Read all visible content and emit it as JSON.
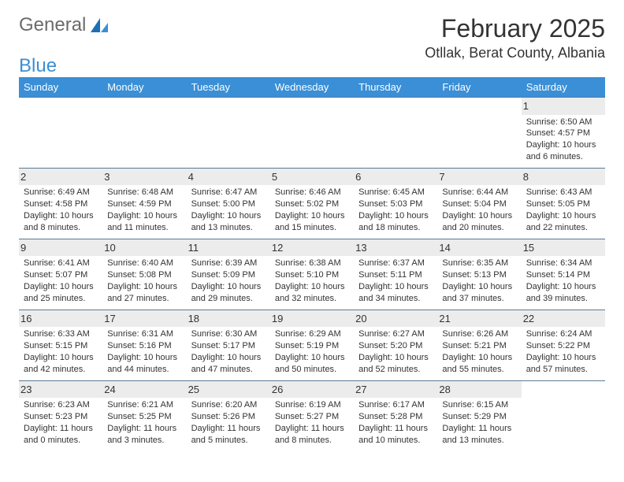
{
  "logo": {
    "part1": "General",
    "part2": "Blue"
  },
  "title": "February 2025",
  "location": "Otllak, Berat County, Albania",
  "colors": {
    "header_bg": "#3a8fd6",
    "header_text": "#ffffff",
    "daynum_bg": "#ececec",
    "row_border": "#5a7a95",
    "text": "#333333",
    "logo_gray": "#6b6b6b",
    "logo_blue": "#3a8fd6"
  },
  "day_headers": [
    "Sunday",
    "Monday",
    "Tuesday",
    "Wednesday",
    "Thursday",
    "Friday",
    "Saturday"
  ],
  "weeks": [
    [
      {
        "n": "",
        "sr": "",
        "ss": "",
        "dl": ""
      },
      {
        "n": "",
        "sr": "",
        "ss": "",
        "dl": ""
      },
      {
        "n": "",
        "sr": "",
        "ss": "",
        "dl": ""
      },
      {
        "n": "",
        "sr": "",
        "ss": "",
        "dl": ""
      },
      {
        "n": "",
        "sr": "",
        "ss": "",
        "dl": ""
      },
      {
        "n": "",
        "sr": "",
        "ss": "",
        "dl": ""
      },
      {
        "n": "1",
        "sr": "Sunrise: 6:50 AM",
        "ss": "Sunset: 4:57 PM",
        "dl": "Daylight: 10 hours and 6 minutes."
      }
    ],
    [
      {
        "n": "2",
        "sr": "Sunrise: 6:49 AM",
        "ss": "Sunset: 4:58 PM",
        "dl": "Daylight: 10 hours and 8 minutes."
      },
      {
        "n": "3",
        "sr": "Sunrise: 6:48 AM",
        "ss": "Sunset: 4:59 PM",
        "dl": "Daylight: 10 hours and 11 minutes."
      },
      {
        "n": "4",
        "sr": "Sunrise: 6:47 AM",
        "ss": "Sunset: 5:00 PM",
        "dl": "Daylight: 10 hours and 13 minutes."
      },
      {
        "n": "5",
        "sr": "Sunrise: 6:46 AM",
        "ss": "Sunset: 5:02 PM",
        "dl": "Daylight: 10 hours and 15 minutes."
      },
      {
        "n": "6",
        "sr": "Sunrise: 6:45 AM",
        "ss": "Sunset: 5:03 PM",
        "dl": "Daylight: 10 hours and 18 minutes."
      },
      {
        "n": "7",
        "sr": "Sunrise: 6:44 AM",
        "ss": "Sunset: 5:04 PM",
        "dl": "Daylight: 10 hours and 20 minutes."
      },
      {
        "n": "8",
        "sr": "Sunrise: 6:43 AM",
        "ss": "Sunset: 5:05 PM",
        "dl": "Daylight: 10 hours and 22 minutes."
      }
    ],
    [
      {
        "n": "9",
        "sr": "Sunrise: 6:41 AM",
        "ss": "Sunset: 5:07 PM",
        "dl": "Daylight: 10 hours and 25 minutes."
      },
      {
        "n": "10",
        "sr": "Sunrise: 6:40 AM",
        "ss": "Sunset: 5:08 PM",
        "dl": "Daylight: 10 hours and 27 minutes."
      },
      {
        "n": "11",
        "sr": "Sunrise: 6:39 AM",
        "ss": "Sunset: 5:09 PM",
        "dl": "Daylight: 10 hours and 29 minutes."
      },
      {
        "n": "12",
        "sr": "Sunrise: 6:38 AM",
        "ss": "Sunset: 5:10 PM",
        "dl": "Daylight: 10 hours and 32 minutes."
      },
      {
        "n": "13",
        "sr": "Sunrise: 6:37 AM",
        "ss": "Sunset: 5:11 PM",
        "dl": "Daylight: 10 hours and 34 minutes."
      },
      {
        "n": "14",
        "sr": "Sunrise: 6:35 AM",
        "ss": "Sunset: 5:13 PM",
        "dl": "Daylight: 10 hours and 37 minutes."
      },
      {
        "n": "15",
        "sr": "Sunrise: 6:34 AM",
        "ss": "Sunset: 5:14 PM",
        "dl": "Daylight: 10 hours and 39 minutes."
      }
    ],
    [
      {
        "n": "16",
        "sr": "Sunrise: 6:33 AM",
        "ss": "Sunset: 5:15 PM",
        "dl": "Daylight: 10 hours and 42 minutes."
      },
      {
        "n": "17",
        "sr": "Sunrise: 6:31 AM",
        "ss": "Sunset: 5:16 PM",
        "dl": "Daylight: 10 hours and 44 minutes."
      },
      {
        "n": "18",
        "sr": "Sunrise: 6:30 AM",
        "ss": "Sunset: 5:17 PM",
        "dl": "Daylight: 10 hours and 47 minutes."
      },
      {
        "n": "19",
        "sr": "Sunrise: 6:29 AM",
        "ss": "Sunset: 5:19 PM",
        "dl": "Daylight: 10 hours and 50 minutes."
      },
      {
        "n": "20",
        "sr": "Sunrise: 6:27 AM",
        "ss": "Sunset: 5:20 PM",
        "dl": "Daylight: 10 hours and 52 minutes."
      },
      {
        "n": "21",
        "sr": "Sunrise: 6:26 AM",
        "ss": "Sunset: 5:21 PM",
        "dl": "Daylight: 10 hours and 55 minutes."
      },
      {
        "n": "22",
        "sr": "Sunrise: 6:24 AM",
        "ss": "Sunset: 5:22 PM",
        "dl": "Daylight: 10 hours and 57 minutes."
      }
    ],
    [
      {
        "n": "23",
        "sr": "Sunrise: 6:23 AM",
        "ss": "Sunset: 5:23 PM",
        "dl": "Daylight: 11 hours and 0 minutes."
      },
      {
        "n": "24",
        "sr": "Sunrise: 6:21 AM",
        "ss": "Sunset: 5:25 PM",
        "dl": "Daylight: 11 hours and 3 minutes."
      },
      {
        "n": "25",
        "sr": "Sunrise: 6:20 AM",
        "ss": "Sunset: 5:26 PM",
        "dl": "Daylight: 11 hours and 5 minutes."
      },
      {
        "n": "26",
        "sr": "Sunrise: 6:19 AM",
        "ss": "Sunset: 5:27 PM",
        "dl": "Daylight: 11 hours and 8 minutes."
      },
      {
        "n": "27",
        "sr": "Sunrise: 6:17 AM",
        "ss": "Sunset: 5:28 PM",
        "dl": "Daylight: 11 hours and 10 minutes."
      },
      {
        "n": "28",
        "sr": "Sunrise: 6:15 AM",
        "ss": "Sunset: 5:29 PM",
        "dl": "Daylight: 11 hours and 13 minutes."
      },
      {
        "n": "",
        "sr": "",
        "ss": "",
        "dl": ""
      }
    ]
  ]
}
